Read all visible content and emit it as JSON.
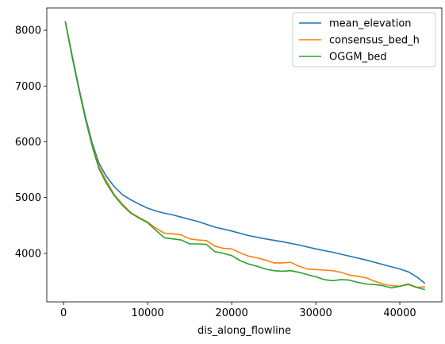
{
  "chart_data": {
    "type": "line",
    "xlabel": "dis_along_flowline",
    "ylabel": "",
    "xlim": [
      -2000,
      45000
    ],
    "ylim": [
      3130,
      8400
    ],
    "xticks": [
      0,
      10000,
      20000,
      30000,
      40000
    ],
    "yticks": [
      4000,
      5000,
      6000,
      7000,
      8000
    ],
    "legend_position": "top-right",
    "series": [
      {
        "name": "mean_elevation",
        "color": "#1f77b4",
        "x": [
          200,
          1000,
          1800,
          2600,
          3400,
          4200,
          5000,
          6000,
          7000,
          8000,
          9000,
          10000,
          11000,
          12000,
          13000,
          14000,
          15000,
          16000,
          17000,
          18000,
          20000,
          22000,
          24000,
          26000,
          28000,
          30000,
          32000,
          34000,
          36000,
          38000,
          40000,
          41000,
          42000,
          43000
        ],
        "values": [
          8160,
          7560,
          6980,
          6450,
          5980,
          5620,
          5400,
          5200,
          5050,
          4960,
          4880,
          4810,
          4760,
          4720,
          4690,
          4650,
          4610,
          4570,
          4520,
          4470,
          4400,
          4320,
          4260,
          4210,
          4150,
          4080,
          4020,
          3950,
          3880,
          3800,
          3720,
          3670,
          3580,
          3460
        ]
      },
      {
        "name": "consensus_bed_h",
        "color": "#ff7f0e",
        "x": [
          200,
          1000,
          1800,
          2600,
          3400,
          4200,
          5000,
          6000,
          7000,
          8000,
          9000,
          10000,
          11000,
          12000,
          13000,
          14000,
          15000,
          16000,
          17000,
          18000,
          19000,
          20000,
          21000,
          22000,
          23000,
          24000,
          25000,
          26000,
          27000,
          28000,
          29000,
          30000,
          31000,
          32000,
          33000,
          34000,
          35000,
          36000,
          37000,
          38000,
          39000,
          40000,
          41000,
          42000,
          43000
        ],
        "values": [
          8160,
          7540,
          6960,
          6420,
          5940,
          5560,
          5320,
          5060,
          4880,
          4730,
          4640,
          4560,
          4450,
          4360,
          4350,
          4330,
          4260,
          4240,
          4230,
          4130,
          4090,
          4080,
          4010,
          3950,
          3920,
          3880,
          3830,
          3830,
          3840,
          3770,
          3720,
          3710,
          3700,
          3690,
          3660,
          3610,
          3590,
          3560,
          3500,
          3450,
          3420,
          3410,
          3440,
          3390,
          3400
        ]
      },
      {
        "name": "OGGM_bed",
        "color": "#2ca02c",
        "x": [
          200,
          1000,
          1800,
          2600,
          3400,
          4200,
          5000,
          6000,
          7000,
          8000,
          9000,
          10000,
          11000,
          12000,
          13000,
          14000,
          15000,
          16000,
          17000,
          18000,
          19000,
          20000,
          21000,
          22000,
          23000,
          24000,
          25000,
          26000,
          27000,
          28000,
          29000,
          30000,
          31000,
          32000,
          33000,
          34000,
          35000,
          36000,
          37000,
          38000,
          39000,
          40000,
          41000,
          42000,
          43000
        ],
        "values": [
          8160,
          7530,
          6950,
          6410,
          5920,
          5520,
          5280,
          5040,
          4860,
          4720,
          4630,
          4550,
          4410,
          4280,
          4260,
          4240,
          4170,
          4170,
          4160,
          4030,
          4000,
          3960,
          3870,
          3810,
          3770,
          3720,
          3690,
          3680,
          3690,
          3660,
          3620,
          3580,
          3530,
          3510,
          3530,
          3520,
          3480,
          3450,
          3440,
          3420,
          3380,
          3410,
          3450,
          3390,
          3350
        ]
      }
    ]
  }
}
